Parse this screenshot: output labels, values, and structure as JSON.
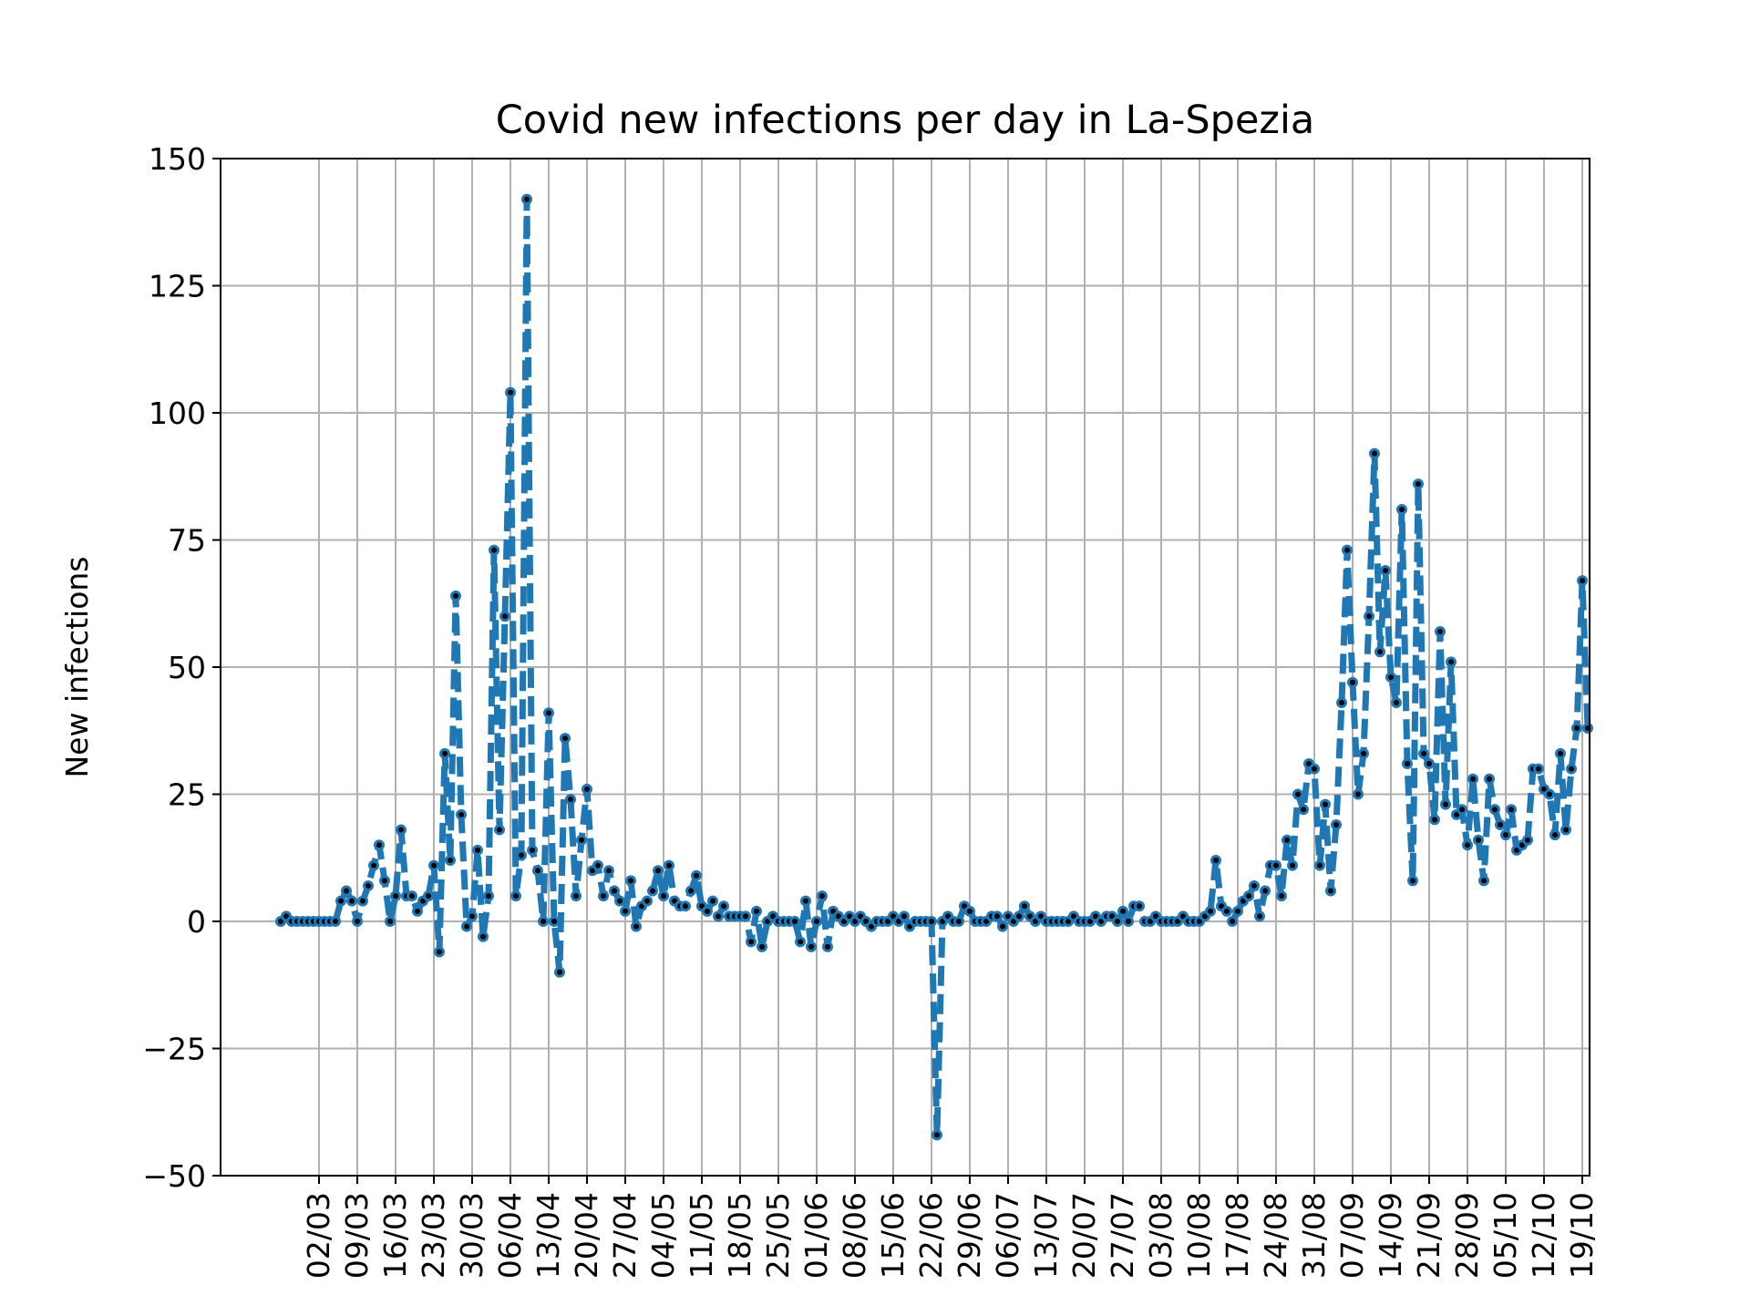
{
  "chart_data": {
    "type": "line",
    "title": "Covid new infections per day in La-Spezia",
    "xlabel": "",
    "ylabel": "New infections",
    "ylim": [
      -50,
      150
    ],
    "y_ticks": [
      -50,
      -25,
      0,
      25,
      50,
      75,
      100,
      125,
      150
    ],
    "y_tick_labels": [
      "−50",
      "−25",
      "0",
      "25",
      "50",
      "75",
      "100",
      "125",
      "150"
    ],
    "x_tick_labels": [
      "02/03",
      "09/03",
      "16/03",
      "23/03",
      "30/03",
      "06/04",
      "13/04",
      "20/04",
      "27/04",
      "04/05",
      "11/05",
      "18/05",
      "25/05",
      "01/06",
      "08/06",
      "15/06",
      "22/06",
      "29/06",
      "06/07",
      "13/07",
      "20/07",
      "27/07",
      "03/08",
      "10/08",
      "17/08",
      "24/08",
      "31/08",
      "07/09",
      "14/09",
      "21/09",
      "28/09",
      "05/10",
      "12/10",
      "19/10"
    ],
    "grid": true,
    "line_color": "#1f77b4",
    "marker_color": "#000000",
    "line_style": "dashed",
    "series": [
      {
        "x": [
          "24/02",
          "25/02",
          "26/02",
          "27/02",
          "28/02",
          "29/02",
          "01/03",
          "02/03",
          "03/03",
          "04/03",
          "05/03",
          "06/03",
          "07/03",
          "08/03",
          "09/03",
          "10/03",
          "11/03",
          "12/03",
          "13/03",
          "14/03",
          "15/03",
          "16/03",
          "17/03",
          "18/03",
          "19/03",
          "20/03",
          "21/03",
          "22/03",
          "23/03",
          "24/03",
          "25/03",
          "26/03",
          "27/03",
          "28/03",
          "29/03",
          "30/03",
          "31/03",
          "01/04",
          "02/04",
          "03/04",
          "04/04",
          "05/04",
          "06/04",
          "07/04",
          "08/04",
          "09/04",
          "10/04",
          "11/04",
          "12/04",
          "13/04",
          "14/04",
          "15/04",
          "16/04",
          "17/04",
          "18/04",
          "19/04",
          "20/04",
          "21/04",
          "22/04",
          "23/04",
          "24/04",
          "25/04",
          "26/04",
          "27/04",
          "28/04",
          "29/04",
          "30/04",
          "01/05",
          "02/05",
          "03/05",
          "04/05",
          "05/05",
          "06/05",
          "07/05",
          "08/05",
          "09/05",
          "10/05",
          "11/05",
          "12/05",
          "13/05",
          "14/05",
          "15/05",
          "16/05",
          "17/05",
          "18/05",
          "19/05",
          "20/05",
          "21/05",
          "22/05",
          "23/05",
          "24/05",
          "25/05",
          "26/05",
          "27/05",
          "28/05",
          "29/05",
          "30/05",
          "31/05",
          "01/06",
          "02/06",
          "03/06",
          "04/06",
          "05/06",
          "06/06",
          "07/06",
          "08/06",
          "09/06",
          "10/06",
          "11/06",
          "12/06",
          "13/06",
          "14/06",
          "15/06",
          "16/06",
          "17/06",
          "18/06",
          "19/06",
          "20/06",
          "21/06",
          "22/06",
          "23/06",
          "24/06",
          "25/06",
          "26/06",
          "27/06",
          "28/06",
          "29/06",
          "30/06",
          "01/07",
          "02/07",
          "03/07",
          "04/07",
          "05/07",
          "06/07",
          "07/07",
          "08/07",
          "09/07",
          "10/07",
          "11/07",
          "12/07",
          "13/07",
          "14/07",
          "15/07",
          "16/07",
          "17/07",
          "18/07",
          "19/07",
          "20/07",
          "21/07",
          "22/07",
          "23/07",
          "24/07",
          "25/07",
          "26/07",
          "27/07",
          "28/07",
          "29/07",
          "30/07",
          "31/07",
          "01/08",
          "02/08",
          "03/08",
          "04/08",
          "05/08",
          "06/08",
          "07/08",
          "08/08",
          "09/08",
          "10/08",
          "11/08",
          "12/08",
          "13/08",
          "14/08",
          "15/08",
          "16/08",
          "17/08",
          "18/08",
          "19/08",
          "20/08",
          "21/08",
          "22/08",
          "23/08",
          "24/08",
          "25/08",
          "26/08",
          "27/08",
          "28/08",
          "29/08",
          "30/08",
          "31/08",
          "01/09",
          "02/09",
          "03/09",
          "04/09",
          "05/09",
          "06/09",
          "07/09",
          "08/09",
          "09/09",
          "10/09",
          "11/09",
          "12/09",
          "13/09",
          "14/09",
          "15/09",
          "16/09",
          "17/09",
          "18/09",
          "19/09",
          "20/09",
          "21/09",
          "22/09",
          "23/09",
          "24/09",
          "25/09",
          "26/09",
          "27/09",
          "28/09",
          "29/09",
          "30/09",
          "01/10",
          "02/10",
          "03/10",
          "04/10",
          "05/10",
          "06/10",
          "07/10",
          "08/10",
          "09/10",
          "10/10",
          "11/10",
          "12/10",
          "13/10",
          "14/10",
          "15/10",
          "16/10",
          "17/10",
          "18/10",
          "19/10",
          "20/10"
        ],
        "values": [
          0,
          1,
          0,
          0,
          0,
          0,
          0,
          0,
          0,
          0,
          0,
          4,
          6,
          4,
          0,
          4,
          7,
          11,
          15,
          8,
          0,
          5,
          18,
          5,
          5,
          2,
          4,
          5,
          11,
          -6,
          33,
          12,
          64,
          21,
          -1,
          1,
          14,
          -3,
          5,
          73,
          18,
          60,
          104,
          5,
          13,
          142,
          14,
          10,
          0,
          41,
          0,
          -10,
          36,
          24,
          5,
          16,
          26,
          10,
          11,
          5,
          10,
          6,
          4,
          2,
          8,
          -1,
          3,
          4,
          6,
          10,
          5,
          11,
          4,
          3,
          3,
          6,
          9,
          3,
          2,
          4,
          1,
          3,
          1,
          1,
          1,
          1,
          -4,
          2,
          -5,
          0,
          1,
          0,
          0,
          0,
          0,
          -4,
          4,
          -5,
          0,
          5,
          -5,
          2,
          1,
          0,
          1,
          0,
          1,
          0,
          -1,
          0,
          0,
          0,
          1,
          0,
          1,
          -1,
          0,
          0,
          0,
          0,
          -42,
          0,
          1,
          0,
          0,
          3,
          2,
          0,
          0,
          0,
          1,
          1,
          -1,
          1,
          0,
          1,
          3,
          1,
          0,
          1,
          0,
          0,
          0,
          0,
          0,
          1,
          0,
          0,
          0,
          1,
          0,
          1,
          1,
          0,
          2,
          0,
          3,
          3,
          0,
          0,
          1,
          0,
          0,
          0,
          0,
          1,
          0,
          0,
          0,
          1,
          2,
          12,
          3,
          2,
          0,
          2,
          4,
          5,
          7,
          1,
          6,
          11,
          11,
          5,
          16,
          11,
          25,
          22,
          31,
          30,
          11,
          23,
          6,
          19,
          43,
          73,
          47,
          25,
          33,
          60,
          92,
          53,
          69,
          48,
          43,
          81,
          31,
          8,
          86,
          33,
          31,
          20,
          57,
          23,
          51,
          21,
          22,
          15,
          28,
          16,
          8,
          28,
          22,
          19,
          17,
          22,
          14,
          15,
          16,
          30,
          30,
          26,
          25,
          17,
          33,
          18,
          30,
          38,
          67,
          38
        ]
      }
    ]
  }
}
